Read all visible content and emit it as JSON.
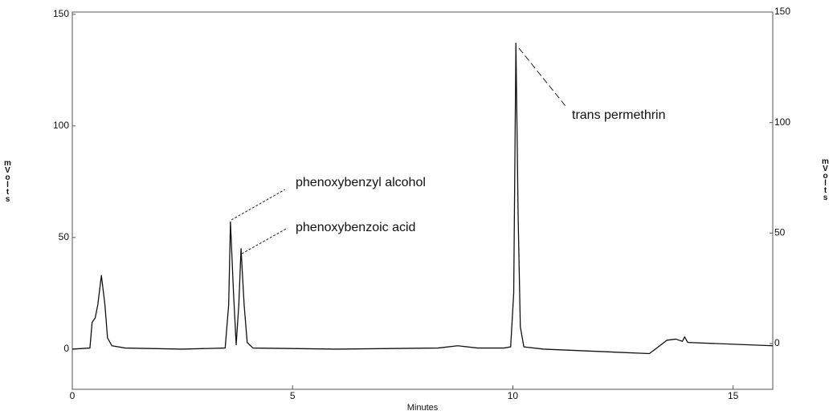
{
  "chart_data": {
    "type": "line",
    "x_label": "Minutes",
    "y_label": "mVolts",
    "y2_label": "mVolts",
    "annotations": [
      "phenoxybenzyl alcohol",
      "phenoxybenzoic acid",
      "trans permethrin"
    ],
    "x": [
      0,
      0.4,
      0.45,
      0.52,
      0.58,
      0.66,
      0.74,
      0.8,
      0.9,
      1.2,
      2.5,
      3.47,
      3.55,
      3.59,
      3.66,
      3.72,
      3.78,
      3.83,
      3.9,
      3.97,
      4.1,
      6,
      8.3,
      8.75,
      9.2,
      9.8,
      9.95,
      10.02,
      10.07,
      10.12,
      10.17,
      10.25,
      10.7,
      13.1,
      13.5,
      13.7,
      13.85,
      13.9,
      13.97,
      15.9
    ],
    "series": [
      {
        "color": "#111111",
        "values": [
          0,
          0.5,
          12,
          14,
          20,
          33,
          20,
          5,
          1.5,
          0.5,
          0,
          0.5,
          20,
          57,
          25,
          2,
          20,
          45,
          20,
          3,
          0.5,
          0,
          0.5,
          1.5,
          0.5,
          0.5,
          1,
          25,
          137,
          60,
          10,
          1,
          0,
          -2,
          4,
          4.5,
          3.5,
          5.5,
          3,
          1.5
        ]
      }
    ],
    "xlim": [
      0,
      15.9
    ],
    "xticks": [
      0,
      5,
      10,
      15
    ],
    "ylim": [
      -18,
      151
    ],
    "yticks": [
      0,
      50,
      100,
      150
    ],
    "y2lim": [
      -20.7,
      150
    ],
    "y2ticks": [
      0,
      50,
      100,
      150
    ]
  }
}
